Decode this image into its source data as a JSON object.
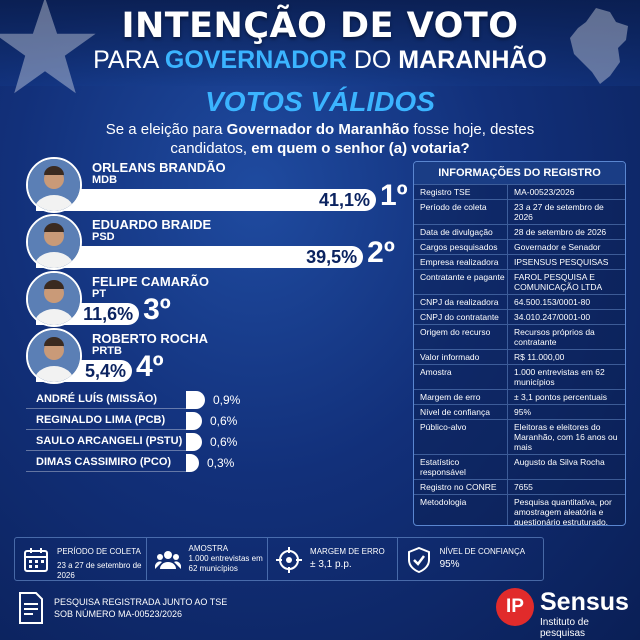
{
  "header": {
    "title_line1": "INTENÇÃO DE VOTO",
    "title_line2_part1": "PARA ",
    "title_line2_highlight": "GOVERNADOR",
    "title_line2_part2": " DO ",
    "title_line2_part3": "MARANHÃO",
    "subtitle": "VOTOS VÁLIDOS",
    "question_part1": "Se a eleição para ",
    "question_bold1": "Governador do Maranhão",
    "question_part2": " fosse hoje, destes candidatos, ",
    "question_bold2": "em quem o senhor (a) votaria?"
  },
  "chart_data": {
    "type": "bar",
    "title": "VOTOS VÁLIDOS",
    "main_candidates": [
      {
        "name": "ORLEANS BRANDÃO",
        "party": "MDB",
        "value": 41.1,
        "label": "41,1%",
        "rank": "1º"
      },
      {
        "name": "EDUARDO BRAIDE",
        "party": "PSD",
        "value": 39.5,
        "label": "39,5%",
        "rank": "2º"
      },
      {
        "name": "FELIPE CAMARÃO",
        "party": "PT",
        "value": 11.6,
        "label": "11,6%",
        "rank": "3º"
      },
      {
        "name": "ROBERTO ROCHA",
        "party": "PRTB",
        "value": 5.4,
        "label": "5,4%",
        "rank": "4º"
      }
    ],
    "minor_candidates": [
      {
        "name": "ANDRÉ LUÍS (MISSÃO)",
        "value": 0.9,
        "label": "0,9%"
      },
      {
        "name": "REGINALDO LIMA (PCB)",
        "value": 0.6,
        "label": "0,6%"
      },
      {
        "name": "SAULO ARCANGELI (PSTU)",
        "value": 0.6,
        "label": "0,6%"
      },
      {
        "name": "DIMAS CASSIMIRO (PCO)",
        "value": 0.3,
        "label": "0,3%"
      }
    ]
  },
  "registro": {
    "title": "INFORMAÇÕES DO REGISTRO",
    "rows": [
      {
        "k": "Registro TSE",
        "v": "MA-00523/2026"
      },
      {
        "k": "Período de coleta",
        "v": "23 a 27 de setembro de 2026"
      },
      {
        "k": "Data de divulgação",
        "v": "28 de setembro de 2026"
      },
      {
        "k": "Cargos pesquisados",
        "v": "Governador e Senador"
      },
      {
        "k": "Empresa realizadora",
        "v": "IPSENSUS PESQUISAS"
      },
      {
        "k": "Contratante e pagante",
        "v": "FAROL PESQUISA E COMUNICAÇÃO LTDA"
      },
      {
        "k": "CNPJ da realizadora",
        "v": "64.500.153/0001-80"
      },
      {
        "k": "CNPJ do contratante",
        "v": "34.010.247/0001-00"
      },
      {
        "k": "Origem do recurso",
        "v": "Recursos próprios da contratante"
      },
      {
        "k": "Valor informado",
        "v": "R$ 11.000,00"
      },
      {
        "k": "Amostra",
        "v": "1.000 entrevistas em 62 municípios"
      },
      {
        "k": "Margem de erro",
        "v": "± 3,1 pontos percentuais"
      },
      {
        "k": "Nível de confiança",
        "v": "95%"
      },
      {
        "k": "Público-alvo",
        "v": "Eleitoras e eleitores do Maranhão, com 16 anos ou mais"
      },
      {
        "k": "Estatístico responsável",
        "v": "Augusto da Silva Rocha"
      },
      {
        "k": "Registro no CONRE",
        "v": "7655"
      },
      {
        "k": "Metodologia",
        "v": "Pesquisa quantitativa, por amostragem aleatória e questionário estruturado."
      }
    ]
  },
  "footer": {
    "periodo_label": "PERÍODO DE COLETA",
    "periodo_value": "23 a 27 de setembro de 2026",
    "amostra_label": "AMOSTRA",
    "amostra_value": "1.000 entrevistas em 62 municípios",
    "margem_label": "MARGEM DE ERRO",
    "margem_value": "± 3,1 p.p.",
    "confianca_label": "NÍVEL DE CONFIANÇA",
    "confianca_value": "95%",
    "tse_line1": "PESQUISA REGISTRADA JUNTO AO TSE",
    "tse_line2": "SOB NÚMERO MA-00523/2026"
  },
  "logo": {
    "mark": "IP",
    "name": "Sensus",
    "sub": "Instituto de pesquisas"
  },
  "colors": {
    "accent": "#3bb4ff",
    "logo_red": "#e12b2b",
    "bar_text": "#0b2360"
  }
}
